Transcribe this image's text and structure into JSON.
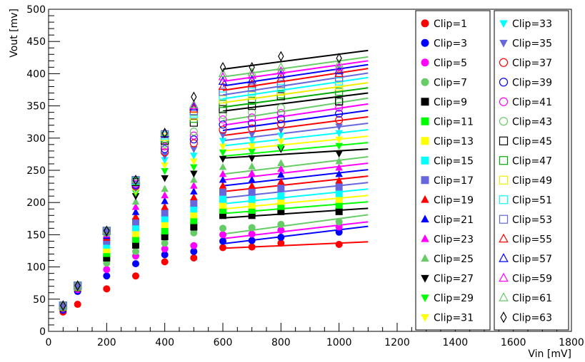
{
  "chart_data": {
    "type": "scatter",
    "title": "",
    "xlabel": "Vin [mV]",
    "ylabel": "Vout [mv]",
    "xlim": [
      0,
      1800
    ],
    "ylim": [
      0,
      500
    ],
    "xticks": [
      0,
      200,
      400,
      600,
      800,
      1000,
      1200,
      1400,
      1600,
      1800
    ],
    "yticks": [
      0,
      50,
      100,
      150,
      200,
      250,
      300,
      350,
      400,
      450,
      500
    ],
    "grid": false,
    "legend_placement": "right",
    "x": [
      50,
      100,
      200,
      300,
      400,
      500,
      600,
      700,
      800,
      1000
    ],
    "fit_range": [
      600,
      1100
    ],
    "series": [
      {
        "name": "Clip=1",
        "marker": "circle",
        "filled": true,
        "color": "#ff0000",
        "values": [
          30,
          42,
          66,
          86,
          108,
          114,
          130,
          131,
          137,
          135
        ],
        "fit": [
          129,
          139
        ]
      },
      {
        "name": "Clip=3",
        "marker": "circle",
        "filled": true,
        "color": "#0000ff",
        "values": [
          33,
          62,
          86,
          105,
          119,
          124,
          140,
          141,
          146,
          154
        ],
        "fit": [
          136,
          163
        ]
      },
      {
        "name": "Clip=5",
        "marker": "circle",
        "filled": true,
        "color": "#ff00ff",
        "values": [
          35,
          65,
          96,
          117,
          128,
          133,
          150,
          151,
          157,
          162
        ],
        "fit": [
          144,
          170
        ]
      },
      {
        "name": "Clip=7",
        "marker": "circle",
        "filled": true,
        "color": "#66cc66",
        "values": [
          36,
          67,
          106,
          124,
          137,
          153,
          160,
          161,
          166,
          170
        ],
        "fit": [
          151,
          181
        ]
      },
      {
        "name": "Clip=9",
        "marker": "square",
        "filled": true,
        "color": "#000000",
        "values": [
          37,
          68,
          114,
          134,
          147,
          162,
          180,
          180,
          186,
          186
        ],
        "fit": [
          176,
          191
        ]
      },
      {
        "name": "Clip=11",
        "marker": "square",
        "filled": true,
        "color": "#00ff00",
        "values": [
          38,
          69,
          121,
          143,
          156,
          172,
          188,
          188,
          194,
          196
        ],
        "fit": [
          183,
          201
        ]
      },
      {
        "name": "Clip=13",
        "marker": "square",
        "filled": true,
        "color": "#ffff00",
        "values": [
          38,
          69,
          127,
          152,
          166,
          181,
          196,
          196,
          202,
          205
        ],
        "fit": [
          190,
          211
        ]
      },
      {
        "name": "Clip=15",
        "marker": "square",
        "filled": true,
        "color": "#00ffff",
        "values": [
          39,
          70,
          134,
          161,
          175,
          190,
          205,
          205,
          210,
          214
        ],
        "fit": [
          198,
          221
        ]
      },
      {
        "name": "Clip=17",
        "marker": "square",
        "filled": true,
        "color": "#6666dd",
        "values": [
          39,
          70,
          140,
          170,
          184,
          199,
          216,
          216,
          222,
          224
        ],
        "fit": [
          207,
          231
        ]
      },
      {
        "name": "Clip=19",
        "marker": "triangle",
        "filled": true,
        "color": "#ff0000",
        "values": [
          39,
          70,
          145,
          178,
          193,
          208,
          226,
          226,
          232,
          234
        ],
        "fit": [
          217,
          241
        ]
      },
      {
        "name": "Clip=21",
        "marker": "triangle",
        "filled": true,
        "color": "#0000ff",
        "values": [
          39,
          70,
          148,
          185,
          202,
          217,
          235,
          235,
          243,
          244
        ],
        "fit": [
          226,
          251
        ]
      },
      {
        "name": "Clip=23",
        "marker": "triangle",
        "filled": true,
        "color": "#ff00ff",
        "values": [
          39,
          70,
          150,
          193,
          211,
          226,
          244,
          245,
          252,
          254
        ],
        "fit": [
          235,
          261
        ]
      },
      {
        "name": "Clip=25",
        "marker": "triangle",
        "filled": true,
        "color": "#66cc66",
        "values": [
          39,
          70,
          152,
          201,
          221,
          235,
          255,
          256,
          261,
          264
        ],
        "fit": [
          244,
          271
        ]
      },
      {
        "name": "Clip=27",
        "marker": "tri_down",
        "filled": true,
        "color": "#000000",
        "values": [
          40,
          71,
          153,
          210,
          238,
          245,
          268,
          269,
          283,
          276
        ],
        "fit": [
          269,
          283
        ]
      },
      {
        "name": "Clip=29",
        "marker": "tri_down",
        "filled": true,
        "color": "#00ff00",
        "values": [
          40,
          71,
          154,
          215,
          249,
          255,
          278,
          279,
          286,
          288
        ],
        "fit": [
          272,
          293
        ]
      },
      {
        "name": "Clip=31",
        "marker": "tri_down",
        "filled": true,
        "color": "#ffff00",
        "values": [
          40,
          71,
          154,
          218,
          258,
          264,
          287,
          288,
          295,
          298
        ],
        "fit": [
          280,
          303
        ]
      },
      {
        "name": "Clip=33",
        "marker": "tri_down",
        "filled": true,
        "color": "#00ffff",
        "values": [
          40,
          71,
          155,
          221,
          266,
          273,
          296,
          297,
          304,
          308
        ],
        "fit": [
          288,
          313
        ]
      },
      {
        "name": "Clip=35",
        "marker": "tri_down",
        "filled": true,
        "color": "#6666dd",
        "values": [
          40,
          71,
          155,
          223,
          273,
          283,
          305,
          306,
          313,
          318
        ],
        "fit": [
          296,
          323
        ]
      },
      {
        "name": "Clip=37",
        "marker": "circle",
        "filled": false,
        "color": "#ff0000",
        "values": [
          40,
          71,
          155,
          225,
          278,
          292,
          313,
          315,
          322,
          328
        ],
        "fit": [
          304,
          333
        ]
      },
      {
        "name": "Clip=39",
        "marker": "circle",
        "filled": false,
        "color": "#0000ff",
        "values": [
          40,
          71,
          155,
          227,
          283,
          298,
          321,
          323,
          330,
          338
        ],
        "fit": [
          312,
          343
        ]
      },
      {
        "name": "Clip=41",
        "marker": "circle",
        "filled": false,
        "color": "#ff00ff",
        "values": [
          40,
          71,
          156,
          229,
          287,
          304,
          329,
          332,
          339,
          347
        ],
        "fit": [
          320,
          353
        ]
      },
      {
        "name": "Clip=43",
        "marker": "circle",
        "filled": false,
        "color": "#66cc66",
        "values": [
          40,
          71,
          156,
          231,
          291,
          310,
          336,
          340,
          347,
          356
        ],
        "fit": [
          327,
          362
        ]
      },
      {
        "name": "Clip=45",
        "marker": "square",
        "filled": false,
        "color": "#000000",
        "values": [
          40,
          71,
          156,
          232,
          296,
          324,
          345,
          350,
          365,
          357
        ],
        "fit": [
          342,
          370
        ]
      },
      {
        "name": "Clip=47",
        "marker": "square",
        "filled": false,
        "color": "#00aa00",
        "values": [
          40,
          71,
          156,
          233,
          299,
          330,
          353,
          358,
          368,
          372
        ],
        "fit": [
          348,
          378
        ]
      },
      {
        "name": "Clip=49",
        "marker": "square",
        "filled": false,
        "color": "#eeee00",
        "values": [
          40,
          71,
          156,
          234,
          302,
          334,
          360,
          366,
          372,
          380
        ],
        "fit": [
          355,
          386
        ]
      },
      {
        "name": "Clip=51",
        "marker": "square",
        "filled": false,
        "color": "#00ffff",
        "values": [
          40,
          71,
          156,
          234,
          304,
          338,
          366,
          372,
          378,
          388
        ],
        "fit": [
          361,
          394
        ]
      },
      {
        "name": "Clip=53",
        "marker": "square",
        "filled": false,
        "color": "#6666dd",
        "values": [
          40,
          71,
          156,
          235,
          306,
          342,
          372,
          378,
          384,
          394
        ],
        "fit": [
          367,
          401
        ]
      },
      {
        "name": "Clip=55",
        "marker": "triangle",
        "filled": false,
        "color": "#ff0000",
        "values": [
          40,
          71,
          156,
          235,
          307,
          345,
          380,
          384,
          392,
          400
        ],
        "fit": [
          374,
          408
        ]
      },
      {
        "name": "Clip=57",
        "marker": "triangle",
        "filled": false,
        "color": "#0000ff",
        "values": [
          40,
          71,
          156,
          235,
          307,
          348,
          388,
          390,
          398,
          405
        ],
        "fit": [
          381,
          414
        ]
      },
      {
        "name": "Clip=59",
        "marker": "triangle",
        "filled": false,
        "color": "#ff00ff",
        "values": [
          40,
          71,
          156,
          235,
          308,
          350,
          395,
          397,
          404,
          410
        ],
        "fit": [
          388,
          420
        ]
      },
      {
        "name": "Clip=61",
        "marker": "triangle",
        "filled": false,
        "color": "#66cc66",
        "values": [
          40,
          71,
          156,
          235,
          308,
          352,
          400,
          402,
          410,
          415
        ],
        "fit": [
          395,
          426
        ]
      },
      {
        "name": "Clip=63",
        "marker": "diamond",
        "filled": false,
        "color": "#000000",
        "values": [
          40,
          71,
          156,
          235,
          308,
          364,
          410,
          410,
          427,
          424
        ],
        "fit": [
          407,
          436
        ]
      }
    ]
  }
}
